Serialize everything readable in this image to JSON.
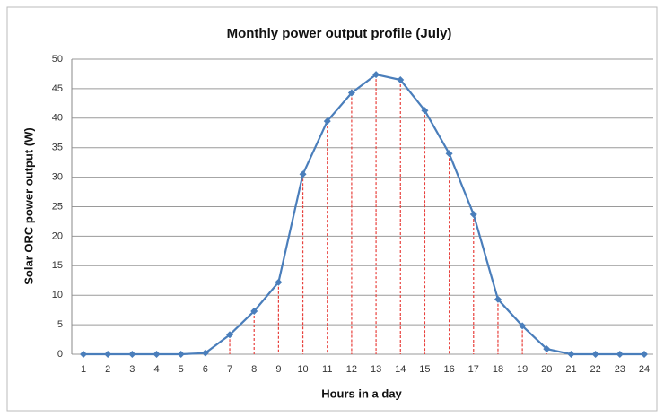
{
  "chart_data": {
    "type": "line",
    "title": "Monthly power output profile (July)",
    "x_label": "Hours in a day",
    "y_label": "Solar ORC power output (W)",
    "categories": [
      "1",
      "2",
      "3",
      "4",
      "5",
      "6",
      "7",
      "8",
      "9",
      "10",
      "11",
      "12",
      "13",
      "14",
      "15",
      "16",
      "17",
      "18",
      "19",
      "20",
      "21",
      "22",
      "23",
      "24"
    ],
    "series": [
      {
        "name": "Solar ORC power output",
        "color": "#4a7ebb",
        "values": [
          0,
          0,
          0,
          0,
          0,
          0.2,
          3.3,
          7.3,
          12.2,
          30.5,
          39.5,
          44.3,
          47.4,
          46.5,
          41.3,
          34,
          23.7,
          9.3,
          4.8,
          0.9,
          0,
          0,
          0,
          0
        ]
      }
    ],
    "drop_line_color": "#e8403c",
    "ylim": [
      0,
      50
    ],
    "yticks": [
      0,
      5,
      10,
      15,
      20,
      25,
      30,
      35,
      40,
      45,
      50
    ],
    "grid": true
  }
}
